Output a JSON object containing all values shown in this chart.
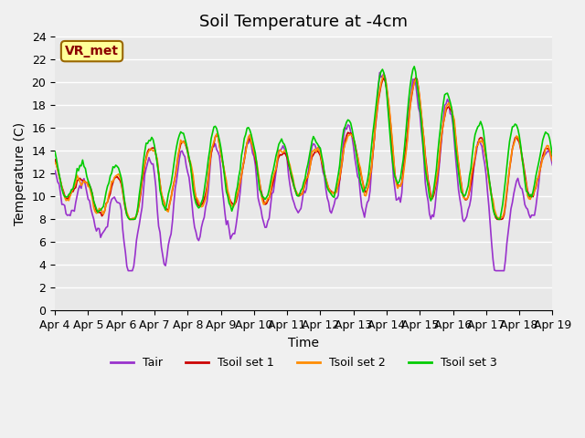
{
  "title": "Soil Temperature at -4cm",
  "xlabel": "Time",
  "ylabel": "Temperature (C)",
  "ylim": [
    0,
    24
  ],
  "yticks": [
    0,
    2,
    4,
    6,
    8,
    10,
    12,
    14,
    16,
    18,
    20,
    22,
    24
  ],
  "xlim": [
    0,
    360
  ],
  "xtick_labels": [
    "Apr 4",
    "Apr 5",
    "Apr 6",
    "Apr 7",
    "Apr 8",
    "Apr 9",
    "Apr 10",
    "Apr 11",
    "Apr 12",
    "Apr 13",
    "Apr 14",
    "Apr 15",
    "Apr 16",
    "Apr 17",
    "Apr 18",
    "Apr 19"
  ],
  "xtick_positions": [
    0,
    24,
    48,
    72,
    96,
    120,
    144,
    168,
    192,
    216,
    240,
    264,
    288,
    312,
    336,
    360
  ],
  "colors": {
    "Tair": "#9932CC",
    "Tsoil1": "#CC0000",
    "Tsoil2": "#FF8C00",
    "Tsoil3": "#00CC00"
  },
  "legend_labels": [
    "Tair",
    "Tsoil set 1",
    "Tsoil set 2",
    "Tsoil set 3"
  ],
  "watermark": "VR_met",
  "watermark_bg": "#FFFF99",
  "watermark_border": "#996600",
  "watermark_text_color": "#8B0000",
  "bg_color": "#E8E8E8",
  "plot_bg_color": "#E8E8E8",
  "grid_color": "#FFFFFF",
  "title_fontsize": 13,
  "axis_label_fontsize": 10,
  "tick_fontsize": 9
}
